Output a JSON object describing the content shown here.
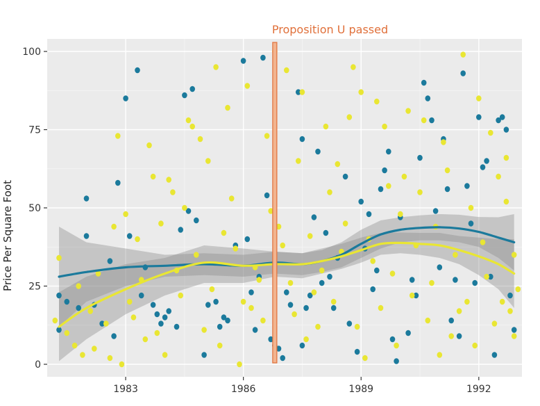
{
  "chart_data": {
    "type": "scatter",
    "title": "",
    "xlabel": "",
    "ylabel": "Price Per Square Foot",
    "xlim": [
      1981,
      1993.1
    ],
    "ylim": [
      -4,
      104
    ],
    "x_ticks": [
      1983,
      1986,
      1989,
      1992
    ],
    "y_ticks": [
      0,
      25,
      50,
      75,
      100
    ],
    "grid": true,
    "legend": "none",
    "annotation": {
      "text": "Proposition U passed",
      "x": 1986.8,
      "color": "#e0703a"
    },
    "series": [
      {
        "color": "#1b7a9c",
        "points": [
          [
            1981.3,
            11
          ],
          [
            1981.3,
            22
          ],
          [
            1981.5,
            20
          ],
          [
            1981.8,
            18
          ],
          [
            1982,
            41
          ],
          [
            1982,
            53
          ],
          [
            1982.2,
            19
          ],
          [
            1982.4,
            13
          ],
          [
            1982.6,
            33
          ],
          [
            1982.7,
            9
          ],
          [
            1982.8,
            58
          ],
          [
            1983,
            85
          ],
          [
            1983.1,
            41
          ],
          [
            1983.3,
            94
          ],
          [
            1983.4,
            22
          ],
          [
            1983.5,
            31
          ],
          [
            1983.7,
            19
          ],
          [
            1983.8,
            16
          ],
          [
            1983.9,
            13
          ],
          [
            1984,
            15
          ],
          [
            1984.1,
            17
          ],
          [
            1984.3,
            12
          ],
          [
            1984.4,
            43
          ],
          [
            1984.5,
            86
          ],
          [
            1984.6,
            49
          ],
          [
            1984.7,
            88
          ],
          [
            1984.8,
            46
          ],
          [
            1985,
            3
          ],
          [
            1985.1,
            19
          ],
          [
            1985.3,
            20
          ],
          [
            1985.4,
            12
          ],
          [
            1985.5,
            15
          ],
          [
            1985.6,
            14
          ],
          [
            1985.8,
            38
          ],
          [
            1986,
            97
          ],
          [
            1986.1,
            40
          ],
          [
            1986.2,
            23
          ],
          [
            1986.3,
            11
          ],
          [
            1986.4,
            28
          ],
          [
            1986.5,
            98
          ],
          [
            1986.6,
            54
          ],
          [
            1986.7,
            8
          ],
          [
            1986.8,
            6
          ],
          [
            1986.9,
            5
          ],
          [
            1987,
            2
          ],
          [
            1987.1,
            23
          ],
          [
            1987.2,
            19
          ],
          [
            1987.4,
            87
          ],
          [
            1987.5,
            72
          ],
          [
            1987.5,
            6
          ],
          [
            1987.6,
            18
          ],
          [
            1987.7,
            22
          ],
          [
            1987.8,
            47
          ],
          [
            1987.9,
            68
          ],
          [
            1988,
            26
          ],
          [
            1988.1,
            42
          ],
          [
            1988.2,
            28
          ],
          [
            1988.3,
            18
          ],
          [
            1988.4,
            34
          ],
          [
            1988.6,
            60
          ],
          [
            1988.7,
            13
          ],
          [
            1988.9,
            4
          ],
          [
            1989,
            52
          ],
          [
            1989.1,
            37
          ],
          [
            1989.2,
            48
          ],
          [
            1989.3,
            24
          ],
          [
            1989.4,
            30
          ],
          [
            1989.5,
            56
          ],
          [
            1989.6,
            62
          ],
          [
            1989.7,
            68
          ],
          [
            1989.8,
            8
          ],
          [
            1989.9,
            1
          ],
          [
            1990,
            47
          ],
          [
            1990.2,
            10
          ],
          [
            1990.3,
            27
          ],
          [
            1990.4,
            22
          ],
          [
            1990.5,
            66
          ],
          [
            1990.6,
            90
          ],
          [
            1990.7,
            85
          ],
          [
            1990.8,
            78
          ],
          [
            1990.9,
            49
          ],
          [
            1991,
            31
          ],
          [
            1991.1,
            72
          ],
          [
            1991.2,
            56
          ],
          [
            1991.3,
            14
          ],
          [
            1991.4,
            27
          ],
          [
            1991.5,
            9
          ],
          [
            1991.6,
            93
          ],
          [
            1991.7,
            57
          ],
          [
            1991.8,
            45
          ],
          [
            1991.9,
            26
          ],
          [
            1992,
            79
          ],
          [
            1992.1,
            63
          ],
          [
            1992.2,
            65
          ],
          [
            1992.3,
            28
          ],
          [
            1992.4,
            3
          ],
          [
            1992.5,
            78
          ],
          [
            1992.6,
            79
          ],
          [
            1992.7,
            75
          ],
          [
            1992.8,
            22
          ],
          [
            1992.9,
            11
          ]
        ]
      },
      {
        "color": "#e9e633",
        "points": [
          [
            1981.2,
            14
          ],
          [
            1981.3,
            34
          ],
          [
            1981.5,
            10
          ],
          [
            1981.7,
            6
          ],
          [
            1981.8,
            25
          ],
          [
            1981.9,
            3
          ],
          [
            1982.1,
            17
          ],
          [
            1982.2,
            5
          ],
          [
            1982.3,
            29
          ],
          [
            1982.5,
            13
          ],
          [
            1982.6,
            2
          ],
          [
            1982.7,
            44
          ],
          [
            1982.8,
            73
          ],
          [
            1982.9,
            0
          ],
          [
            1983,
            48
          ],
          [
            1983.1,
            20
          ],
          [
            1983.2,
            15
          ],
          [
            1983.3,
            40
          ],
          [
            1983.4,
            27
          ],
          [
            1983.5,
            8
          ],
          [
            1983.6,
            70
          ],
          [
            1983.7,
            60
          ],
          [
            1983.8,
            10
          ],
          [
            1983.9,
            45
          ],
          [
            1984,
            3
          ],
          [
            1984.1,
            59
          ],
          [
            1984.2,
            55
          ],
          [
            1984.3,
            30
          ],
          [
            1984.4,
            22
          ],
          [
            1984.5,
            50
          ],
          [
            1984.6,
            78
          ],
          [
            1984.7,
            76
          ],
          [
            1984.8,
            35
          ],
          [
            1984.9,
            72
          ],
          [
            1985,
            11
          ],
          [
            1985.1,
            65
          ],
          [
            1985.2,
            24
          ],
          [
            1985.3,
            95
          ],
          [
            1985.4,
            6
          ],
          [
            1985.5,
            42
          ],
          [
            1985.6,
            82
          ],
          [
            1985.7,
            53
          ],
          [
            1985.8,
            37
          ],
          [
            1985.9,
            0
          ],
          [
            1986,
            20
          ],
          [
            1986.1,
            89
          ],
          [
            1986.2,
            18
          ],
          [
            1986.3,
            31
          ],
          [
            1986.4,
            27
          ],
          [
            1986.5,
            14
          ],
          [
            1986.6,
            73
          ],
          [
            1986.7,
            49
          ],
          [
            1986.8,
            100
          ],
          [
            1986.9,
            44
          ],
          [
            1987,
            38
          ],
          [
            1987.1,
            94
          ],
          [
            1987.2,
            26
          ],
          [
            1987.3,
            16
          ],
          [
            1987.4,
            65
          ],
          [
            1987.5,
            87
          ],
          [
            1987.6,
            8
          ],
          [
            1987.7,
            41
          ],
          [
            1987.8,
            23
          ],
          [
            1987.9,
            12
          ],
          [
            1988,
            30
          ],
          [
            1988.1,
            76
          ],
          [
            1988.2,
            55
          ],
          [
            1988.3,
            20
          ],
          [
            1988.4,
            64
          ],
          [
            1988.5,
            36
          ],
          [
            1988.6,
            45
          ],
          [
            1988.7,
            79
          ],
          [
            1988.8,
            95
          ],
          [
            1988.9,
            12
          ],
          [
            1989,
            87
          ],
          [
            1989.1,
            2
          ],
          [
            1989.2,
            40
          ],
          [
            1989.3,
            33
          ],
          [
            1989.4,
            84
          ],
          [
            1989.5,
            18
          ],
          [
            1989.6,
            76
          ],
          [
            1989.7,
            57
          ],
          [
            1989.8,
            29
          ],
          [
            1989.9,
            6
          ],
          [
            1990,
            48
          ],
          [
            1990.1,
            60
          ],
          [
            1990.2,
            81
          ],
          [
            1990.3,
            22
          ],
          [
            1990.4,
            38
          ],
          [
            1990.5,
            55
          ],
          [
            1990.6,
            78
          ],
          [
            1990.7,
            14
          ],
          [
            1990.8,
            26
          ],
          [
            1990.9,
            44
          ],
          [
            1991,
            3
          ],
          [
            1991.1,
            71
          ],
          [
            1991.2,
            62
          ],
          [
            1991.3,
            9
          ],
          [
            1991.4,
            35
          ],
          [
            1991.5,
            17
          ],
          [
            1991.6,
            99
          ],
          [
            1991.7,
            20
          ],
          [
            1991.8,
            50
          ],
          [
            1991.9,
            6
          ],
          [
            1992,
            85
          ],
          [
            1992.1,
            39
          ],
          [
            1992.2,
            28
          ],
          [
            1992.3,
            74
          ],
          [
            1992.4,
            13
          ],
          [
            1992.5,
            60
          ],
          [
            1992.6,
            20
          ],
          [
            1992.7,
            66
          ],
          [
            1992.8,
            17
          ],
          [
            1992.9,
            35
          ],
          [
            1993,
            24
          ],
          [
            1992.9,
            9
          ],
          [
            1992.7,
            52
          ]
        ]
      }
    ],
    "smooth_lines": [
      {
        "color": "#1b7a9c",
        "x": [
          1981.3,
          1982,
          1983,
          1984,
          1985,
          1986,
          1986.8,
          1987.5,
          1988,
          1988.5,
          1989,
          1989.5,
          1990,
          1990.5,
          1991,
          1991.5,
          1992,
          1992.5,
          1992.9
        ],
        "y": [
          28,
          29.5,
          31,
          31.5,
          32,
          31.5,
          32.5,
          32,
          33,
          35,
          38.5,
          41.5,
          43,
          43.6,
          43.8,
          43.4,
          42.3,
          40.5,
          39
        ],
        "band_lower": [
          12,
          20,
          25,
          28,
          28.5,
          28,
          29,
          28.5,
          29.5,
          31,
          34,
          37,
          39,
          39.6,
          39.6,
          39,
          37.5,
          34,
          30
        ],
        "band_upper": [
          44,
          39,
          37,
          35,
          35.5,
          35,
          36,
          35.5,
          36.5,
          39,
          43,
          46,
          47,
          47.6,
          48,
          47.8,
          47.1,
          47,
          48
        ]
      },
      {
        "color": "#e9e633",
        "x": [
          1981.3,
          1982,
          1983,
          1984,
          1985,
          1986,
          1986.8,
          1987.5,
          1988,
          1988.5,
          1989,
          1989.5,
          1990,
          1990.5,
          1991,
          1991.5,
          1992,
          1992.5,
          1992.9
        ],
        "y": [
          12,
          18,
          24,
          29,
          32.5,
          31.5,
          32,
          32,
          33,
          34.5,
          36.5,
          38.5,
          38.8,
          38.5,
          38,
          36.5,
          34.5,
          32,
          29
        ],
        "band_lower": [
          1,
          8,
          16,
          22,
          26,
          26,
          28,
          27.5,
          29,
          30.5,
          32.5,
          35,
          35.5,
          35,
          34,
          32,
          28.5,
          24,
          18
        ],
        "band_upper": [
          23,
          28,
          32,
          34,
          38,
          37,
          36,
          35.5,
          37,
          38.5,
          40.5,
          42,
          42.1,
          42,
          42,
          41,
          40.5,
          40,
          40
        ]
      }
    ]
  }
}
